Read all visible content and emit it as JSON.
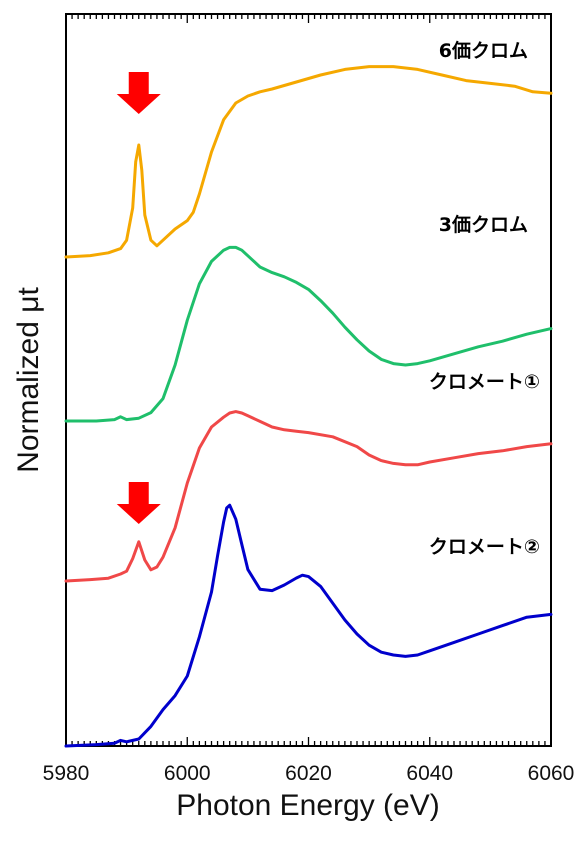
{
  "chart_data": {
    "type": "line",
    "title": "",
    "xlabel": "Photon Energy (eV)",
    "ylabel": "Normalized μt",
    "xlim": [
      5980,
      6060
    ],
    "x_ticks": [
      "5980",
      "6000",
      "6020",
      "6040",
      "6060"
    ],
    "y_ticks_shown": false,
    "grid": false,
    "legend": "none (labels placed next to each curve)",
    "arrow_color": "#ff0000",
    "arrows_at_x": [
      5992,
      5992
    ],
    "series": [
      {
        "name": "6価クロム",
        "color": "#f5a800",
        "x": [
          5980,
          5984,
          5987,
          5989,
          5990,
          5991,
          5991.5,
          5992,
          5992.5,
          5993,
          5994,
          5995,
          5996,
          5998,
          6000,
          6001,
          6002,
          6004,
          6006,
          6008,
          6010,
          6012,
          6014,
          6018,
          6022,
          6026,
          6030,
          6034,
          6038,
          6042,
          6046,
          6050,
          6054,
          6057,
          6060
        ],
        "y": [
          0.0,
          0.01,
          0.03,
          0.06,
          0.12,
          0.35,
          0.68,
          0.8,
          0.62,
          0.3,
          0.12,
          0.08,
          0.12,
          0.2,
          0.26,
          0.32,
          0.45,
          0.75,
          0.98,
          1.1,
          1.15,
          1.18,
          1.2,
          1.25,
          1.3,
          1.34,
          1.36,
          1.36,
          1.34,
          1.3,
          1.26,
          1.24,
          1.22,
          1.18,
          1.17
        ]
      },
      {
        "name": "3価クロム",
        "color": "#1fbf6b",
        "x": [
          5980,
          5985,
          5988,
          5989,
          5990,
          5992,
          5994,
          5996,
          5998,
          6000,
          6002,
          6004,
          6006,
          6007,
          6008,
          6009,
          6010,
          6012,
          6014,
          6016,
          6018,
          6020,
          6022,
          6024,
          6026,
          6028,
          6030,
          6032,
          6034,
          6036,
          6038,
          6040,
          6044,
          6048,
          6052,
          6056,
          6060
        ],
        "y": [
          0.0,
          0.0,
          0.01,
          0.03,
          0.01,
          0.02,
          0.06,
          0.16,
          0.4,
          0.72,
          0.98,
          1.14,
          1.22,
          1.24,
          1.24,
          1.22,
          1.18,
          1.1,
          1.06,
          1.03,
          0.99,
          0.94,
          0.86,
          0.77,
          0.67,
          0.58,
          0.5,
          0.44,
          0.41,
          0.4,
          0.41,
          0.43,
          0.48,
          0.53,
          0.57,
          0.62,
          0.66
        ]
      },
      {
        "name": "クロメート①",
        "color": "#f04848",
        "x": [
          5980,
          5984,
          5987,
          5989,
          5990,
          5991,
          5992,
          5993,
          5994,
          5995,
          5996,
          5998,
          6000,
          6002,
          6004,
          6006,
          6007,
          6008,
          6009,
          6010,
          6012,
          6014,
          6016,
          6018,
          6020,
          6024,
          6028,
          6030,
          6032,
          6034,
          6036,
          6038,
          6040,
          6044,
          6048,
          6052,
          6056,
          6060
        ],
        "y": [
          0.0,
          0.01,
          0.02,
          0.05,
          0.07,
          0.16,
          0.28,
          0.15,
          0.08,
          0.1,
          0.17,
          0.38,
          0.7,
          0.95,
          1.1,
          1.17,
          1.2,
          1.21,
          1.2,
          1.18,
          1.14,
          1.1,
          1.08,
          1.07,
          1.06,
          1.03,
          0.96,
          0.9,
          0.86,
          0.84,
          0.83,
          0.83,
          0.85,
          0.88,
          0.91,
          0.93,
          0.96,
          0.98
        ]
      },
      {
        "name": "クロメート②",
        "color": "#0000cc",
        "x": [
          5980,
          5985,
          5988,
          5989,
          5990,
          5992,
          5994,
          5996,
          5998,
          6000,
          6002,
          6004,
          6005,
          6006,
          6006.5,
          6007,
          6008,
          6009,
          6010,
          6012,
          6014,
          6016,
          6018,
          6019,
          6020,
          6022,
          6024,
          6026,
          6028,
          6030,
          6032,
          6034,
          6036,
          6038,
          6040,
          6044,
          6048,
          6052,
          6056,
          6060
        ],
        "y": [
          0.0,
          0.01,
          0.02,
          0.04,
          0.03,
          0.05,
          0.14,
          0.26,
          0.36,
          0.5,
          0.78,
          1.1,
          1.36,
          1.6,
          1.7,
          1.72,
          1.62,
          1.44,
          1.26,
          1.12,
          1.11,
          1.15,
          1.2,
          1.22,
          1.21,
          1.14,
          1.02,
          0.9,
          0.8,
          0.72,
          0.67,
          0.65,
          0.64,
          0.65,
          0.68,
          0.74,
          0.8,
          0.86,
          0.92,
          0.94
        ]
      }
    ]
  }
}
